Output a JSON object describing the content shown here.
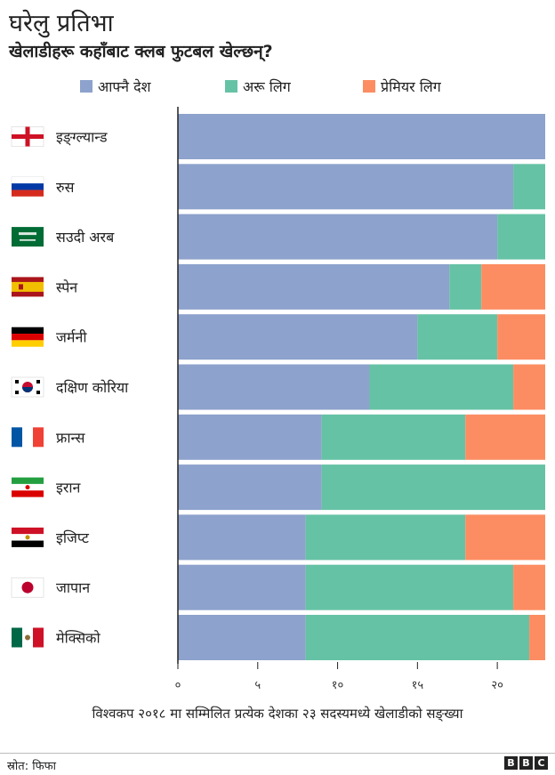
{
  "title": "घरेलु प्रतिभा",
  "subtitle": "खेलाडीहरू कहाँबाट क्लब फुटबल खेल्छन्?",
  "legend": [
    {
      "label": "आफ्नै देश",
      "color": "#8da2cc"
    },
    {
      "label": "अरू लिग",
      "color": "#66c2a5"
    },
    {
      "label": "प्रेमियर लिग",
      "color": "#fc8d62"
    }
  ],
  "caption": "विश्वकप २०१८ मा सम्मिलित प्रत्येक देशका २३ सदस्यमध्ये खेलाडीको सङ्ख्या",
  "source": "स्रोत: फिफा",
  "logo": [
    "B",
    "B",
    "C"
  ],
  "chart_data": {
    "type": "bar",
    "orientation": "horizontal",
    "stacked": true,
    "categories": [
      "इङ्ग्ल्यान्ड",
      "रुस",
      "सउदी अरब",
      "स्पेन",
      "जर्मनी",
      "दक्षिण कोरिया",
      "फ्रान्स",
      "इरान",
      "इजिप्ट",
      "जापान",
      "मेक्सिको"
    ],
    "series": [
      {
        "name": "आफ्नै देश",
        "color": "#8da2cc",
        "values": [
          23,
          21,
          20,
          17,
          15,
          12,
          9,
          9,
          8,
          8,
          8
        ]
      },
      {
        "name": "अरू लिग",
        "color": "#66c2a5",
        "values": [
          0,
          2,
          3,
          2,
          5,
          9,
          9,
          14,
          10,
          13,
          14
        ]
      },
      {
        "name": "प्रेमियर लिग",
        "color": "#fc8d62",
        "values": [
          0,
          0,
          0,
          4,
          3,
          2,
          5,
          0,
          5,
          2,
          1
        ]
      }
    ],
    "flags": [
      "england-flag-icon",
      "russia-flag-icon",
      "saudi-arabia-flag-icon",
      "spain-flag-icon",
      "germany-flag-icon",
      "south-korea-flag-icon",
      "france-flag-icon",
      "iran-flag-icon",
      "egypt-flag-icon",
      "japan-flag-icon",
      "mexico-flag-icon"
    ],
    "xlim": [
      0,
      23
    ],
    "xticks": [
      0,
      5,
      10,
      15,
      20
    ],
    "xtick_labels": [
      "०",
      "५",
      "१०",
      "१५",
      "२०"
    ],
    "legend_position": "top"
  }
}
